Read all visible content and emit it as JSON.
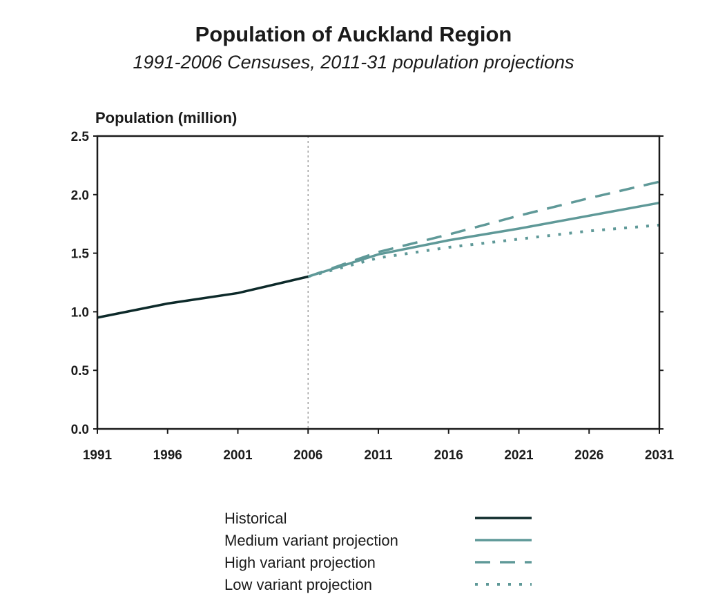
{
  "chart_data": {
    "type": "line",
    "title": "Population of Auckland Region",
    "subtitle": "1991-2006 Censuses, 2011-31 population projections",
    "ylabel": "Population (million)",
    "xlabel": "",
    "xlim": [
      1991,
      2031
    ],
    "ylim": [
      0,
      2.5
    ],
    "x_ticks": [
      1991,
      1996,
      2001,
      2006,
      2011,
      2016,
      2021,
      2026,
      2031
    ],
    "y_ticks": [
      "0.0",
      "0.5",
      "1.0",
      "1.5",
      "2.0",
      "2.5"
    ],
    "divider_x": 2006,
    "grid": false,
    "legend_position": "bottom",
    "series": [
      {
        "name": "Historical",
        "color": "#0d2a2a",
        "style": "solid",
        "x": [
          1991,
          1996,
          2001,
          2006
        ],
        "y": [
          0.95,
          1.07,
          1.16,
          1.3
        ]
      },
      {
        "name": "Medium variant projection",
        "color": "#5f9998",
        "style": "solid",
        "x": [
          2006,
          2011,
          2016,
          2021,
          2026,
          2031
        ],
        "y": [
          1.3,
          1.49,
          1.61,
          1.71,
          1.82,
          1.93
        ]
      },
      {
        "name": "High variant projection",
        "color": "#5f9998",
        "style": "dashed",
        "x": [
          2006,
          2011,
          2016,
          2021,
          2026,
          2031
        ],
        "y": [
          1.3,
          1.51,
          1.66,
          1.82,
          1.97,
          2.11
        ]
      },
      {
        "name": "Low variant projection",
        "color": "#5f9998",
        "style": "dotted",
        "x": [
          2006,
          2011,
          2016,
          2021,
          2026,
          2031
        ],
        "y": [
          1.3,
          1.46,
          1.55,
          1.62,
          1.69,
          1.74
        ]
      }
    ]
  }
}
